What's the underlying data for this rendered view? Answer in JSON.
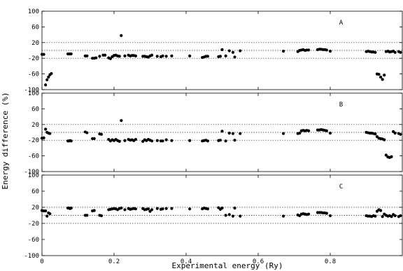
{
  "chart_data": {
    "type": "scatter",
    "xlabel": "Experimental energy (Ry)",
    "ylabel": "Energy difference (%)",
    "xlim": [
      0,
      1.0
    ],
    "x_ticks": [
      "0",
      "0.2",
      "0.4",
      "0.6",
      "0.8"
    ],
    "ylim": [
      -100,
      100
    ],
    "y_ticks": [
      "100",
      "60",
      "20",
      "-20",
      "-60",
      "-100"
    ],
    "reference_lines": [
      20,
      0,
      -20
    ],
    "panels": [
      {
        "label": "A",
        "points": [
          [
            0.0,
            -10
          ],
          [
            0.005,
            -10
          ],
          [
            0.01,
            -88
          ],
          [
            0.014,
            -75
          ],
          [
            0.018,
            -68
          ],
          [
            0.022,
            -62
          ],
          [
            0.026,
            -59
          ],
          [
            0.072,
            -9
          ],
          [
            0.075,
            -9
          ],
          [
            0.078,
            -9
          ],
          [
            0.081,
            -9
          ],
          [
            0.12,
            -14
          ],
          [
            0.125,
            -14
          ],
          [
            0.14,
            -20
          ],
          [
            0.145,
            -20
          ],
          [
            0.15,
            -19
          ],
          [
            0.16,
            -15
          ],
          [
            0.17,
            -12
          ],
          [
            0.175,
            -12
          ],
          [
            0.185,
            -19
          ],
          [
            0.19,
            -21
          ],
          [
            0.195,
            -16
          ],
          [
            0.2,
            -13
          ],
          [
            0.205,
            -12
          ],
          [
            0.21,
            -14
          ],
          [
            0.215,
            -15
          ],
          [
            0.22,
            38
          ],
          [
            0.23,
            -14
          ],
          [
            0.24,
            -12
          ],
          [
            0.245,
            -14
          ],
          [
            0.25,
            -13
          ],
          [
            0.255,
            -13
          ],
          [
            0.26,
            -14
          ],
          [
            0.28,
            -15
          ],
          [
            0.285,
            -15
          ],
          [
            0.29,
            -16
          ],
          [
            0.295,
            -17
          ],
          [
            0.3,
            -14
          ],
          [
            0.305,
            -12
          ],
          [
            0.32,
            -15
          ],
          [
            0.33,
            -16
          ],
          [
            0.335,
            -14
          ],
          [
            0.345,
            -15
          ],
          [
            0.36,
            -14
          ],
          [
            0.41,
            -14
          ],
          [
            0.445,
            -18
          ],
          [
            0.45,
            -17
          ],
          [
            0.455,
            -15
          ],
          [
            0.46,
            -15
          ],
          [
            0.49,
            -16
          ],
          [
            0.495,
            -15
          ],
          [
            0.5,
            2
          ],
          [
            0.51,
            -14
          ],
          [
            0.52,
            -1
          ],
          [
            0.53,
            -5
          ],
          [
            0.535,
            -17
          ],
          [
            0.55,
            -1
          ],
          [
            0.67,
            -2
          ],
          [
            0.71,
            -3
          ],
          [
            0.715,
            0
          ],
          [
            0.72,
            1
          ],
          [
            0.725,
            2
          ],
          [
            0.73,
            0
          ],
          [
            0.735,
            1
          ],
          [
            0.74,
            1
          ],
          [
            0.765,
            2
          ],
          [
            0.77,
            3
          ],
          [
            0.775,
            3
          ],
          [
            0.78,
            2
          ],
          [
            0.785,
            2
          ],
          [
            0.79,
            1
          ],
          [
            0.8,
            -2
          ],
          [
            0.9,
            -3
          ],
          [
            0.905,
            -2
          ],
          [
            0.91,
            -3
          ],
          [
            0.915,
            -4
          ],
          [
            0.92,
            -4
          ],
          [
            0.925,
            -5
          ],
          [
            0.93,
            -60
          ],
          [
            0.935,
            -61
          ],
          [
            0.94,
            -68
          ],
          [
            0.945,
            -74
          ],
          [
            0.95,
            -63
          ],
          [
            0.955,
            -3
          ],
          [
            0.96,
            -2
          ],
          [
            0.965,
            -4
          ],
          [
            0.97,
            -3
          ],
          [
            0.975,
            -2
          ],
          [
            0.98,
            -5
          ],
          [
            0.99,
            -3
          ],
          [
            0.995,
            -5
          ]
        ]
      },
      {
        "label": "B",
        "points": [
          [
            0.0,
            -15
          ],
          [
            0.005,
            -14
          ],
          [
            0.01,
            8
          ],
          [
            0.014,
            0
          ],
          [
            0.018,
            -2
          ],
          [
            0.022,
            -3
          ],
          [
            0.072,
            -22
          ],
          [
            0.075,
            -22
          ],
          [
            0.078,
            -21
          ],
          [
            0.081,
            -22
          ],
          [
            0.12,
            1
          ],
          [
            0.125,
            -1
          ],
          [
            0.14,
            -16
          ],
          [
            0.145,
            -16
          ],
          [
            0.16,
            -4
          ],
          [
            0.165,
            -5
          ],
          [
            0.185,
            -18
          ],
          [
            0.19,
            -22
          ],
          [
            0.195,
            -19
          ],
          [
            0.2,
            -21
          ],
          [
            0.205,
            -18
          ],
          [
            0.21,
            -21
          ],
          [
            0.215,
            -23
          ],
          [
            0.22,
            30
          ],
          [
            0.23,
            -21
          ],
          [
            0.24,
            -18
          ],
          [
            0.245,
            -20
          ],
          [
            0.25,
            -19
          ],
          [
            0.255,
            -21
          ],
          [
            0.26,
            -18
          ],
          [
            0.28,
            -23
          ],
          [
            0.285,
            -19
          ],
          [
            0.29,
            -21
          ],
          [
            0.295,
            -18
          ],
          [
            0.3,
            -20
          ],
          [
            0.305,
            -22
          ],
          [
            0.32,
            -21
          ],
          [
            0.33,
            -22
          ],
          [
            0.335,
            -22
          ],
          [
            0.345,
            -19
          ],
          [
            0.36,
            -21
          ],
          [
            0.41,
            -21
          ],
          [
            0.445,
            -22
          ],
          [
            0.45,
            -21
          ],
          [
            0.455,
            -20
          ],
          [
            0.46,
            -22
          ],
          [
            0.49,
            -21
          ],
          [
            0.495,
            -20
          ],
          [
            0.5,
            3
          ],
          [
            0.51,
            -22
          ],
          [
            0.52,
            -2
          ],
          [
            0.53,
            -3
          ],
          [
            0.535,
            -20
          ],
          [
            0.55,
            -3
          ],
          [
            0.67,
            -3
          ],
          [
            0.71,
            -3
          ],
          [
            0.715,
            -2
          ],
          [
            0.72,
            4
          ],
          [
            0.725,
            5
          ],
          [
            0.73,
            4
          ],
          [
            0.735,
            5
          ],
          [
            0.74,
            4
          ],
          [
            0.765,
            6
          ],
          [
            0.77,
            6
          ],
          [
            0.775,
            7
          ],
          [
            0.78,
            6
          ],
          [
            0.785,
            5
          ],
          [
            0.79,
            4
          ],
          [
            0.8,
            -2
          ],
          [
            0.9,
            0
          ],
          [
            0.905,
            -1
          ],
          [
            0.91,
            -2
          ],
          [
            0.915,
            -2
          ],
          [
            0.92,
            -3
          ],
          [
            0.925,
            -4
          ],
          [
            0.93,
            -11
          ],
          [
            0.935,
            -15
          ],
          [
            0.94,
            -16
          ],
          [
            0.945,
            -17
          ],
          [
            0.95,
            -19
          ],
          [
            0.955,
            -58
          ],
          [
            0.96,
            -63
          ],
          [
            0.965,
            -64
          ],
          [
            0.97,
            -62
          ],
          [
            0.975,
            2
          ],
          [
            0.98,
            -2
          ],
          [
            0.99,
            -3
          ],
          [
            0.995,
            -5
          ]
        ]
      },
      {
        "label": "C",
        "points": [
          [
            0.0,
            12
          ],
          [
            0.005,
            11
          ],
          [
            0.01,
            11
          ],
          [
            0.014,
            -2
          ],
          [
            0.018,
            6
          ],
          [
            0.022,
            4
          ],
          [
            0.072,
            18
          ],
          [
            0.075,
            18
          ],
          [
            0.078,
            17
          ],
          [
            0.081,
            18
          ],
          [
            0.12,
            0
          ],
          [
            0.125,
            0
          ],
          [
            0.14,
            11
          ],
          [
            0.145,
            12
          ],
          [
            0.16,
            0
          ],
          [
            0.165,
            -1
          ],
          [
            0.185,
            14
          ],
          [
            0.19,
            15
          ],
          [
            0.195,
            16
          ],
          [
            0.2,
            17
          ],
          [
            0.205,
            16
          ],
          [
            0.21,
            14
          ],
          [
            0.215,
            17
          ],
          [
            0.22,
            18
          ],
          [
            0.23,
            14
          ],
          [
            0.24,
            17
          ],
          [
            0.245,
            15
          ],
          [
            0.25,
            16
          ],
          [
            0.255,
            17
          ],
          [
            0.26,
            16
          ],
          [
            0.28,
            17
          ],
          [
            0.285,
            14
          ],
          [
            0.29,
            15
          ],
          [
            0.295,
            16
          ],
          [
            0.3,
            10
          ],
          [
            0.305,
            14
          ],
          [
            0.32,
            17
          ],
          [
            0.33,
            15
          ],
          [
            0.335,
            16
          ],
          [
            0.345,
            17
          ],
          [
            0.36,
            17
          ],
          [
            0.41,
            16
          ],
          [
            0.445,
            16
          ],
          [
            0.45,
            18
          ],
          [
            0.455,
            17
          ],
          [
            0.46,
            16
          ],
          [
            0.49,
            19
          ],
          [
            0.495,
            15
          ],
          [
            0.5,
            18
          ],
          [
            0.51,
            0
          ],
          [
            0.52,
            2
          ],
          [
            0.53,
            -2
          ],
          [
            0.535,
            18
          ],
          [
            0.55,
            -2
          ],
          [
            0.67,
            -2
          ],
          [
            0.71,
            1
          ],
          [
            0.715,
            -1
          ],
          [
            0.72,
            3
          ],
          [
            0.725,
            4
          ],
          [
            0.73,
            3
          ],
          [
            0.735,
            2
          ],
          [
            0.74,
            3
          ],
          [
            0.765,
            7
          ],
          [
            0.77,
            7
          ],
          [
            0.775,
            7
          ],
          [
            0.78,
            6
          ],
          [
            0.785,
            6
          ],
          [
            0.79,
            5
          ],
          [
            0.8,
            -1
          ],
          [
            0.9,
            -1
          ],
          [
            0.905,
            -2
          ],
          [
            0.91,
            -2
          ],
          [
            0.915,
            -3
          ],
          [
            0.92,
            -1
          ],
          [
            0.925,
            -2
          ],
          [
            0.93,
            10
          ],
          [
            0.935,
            14
          ],
          [
            0.94,
            12
          ],
          [
            0.945,
            -3
          ],
          [
            0.95,
            3
          ],
          [
            0.955,
            0
          ],
          [
            0.96,
            -2
          ],
          [
            0.965,
            -1
          ],
          [
            0.97,
            -3
          ],
          [
            0.975,
            2
          ],
          [
            0.98,
            -1
          ],
          [
            0.99,
            -3
          ],
          [
            0.995,
            -1
          ]
        ]
      }
    ]
  }
}
